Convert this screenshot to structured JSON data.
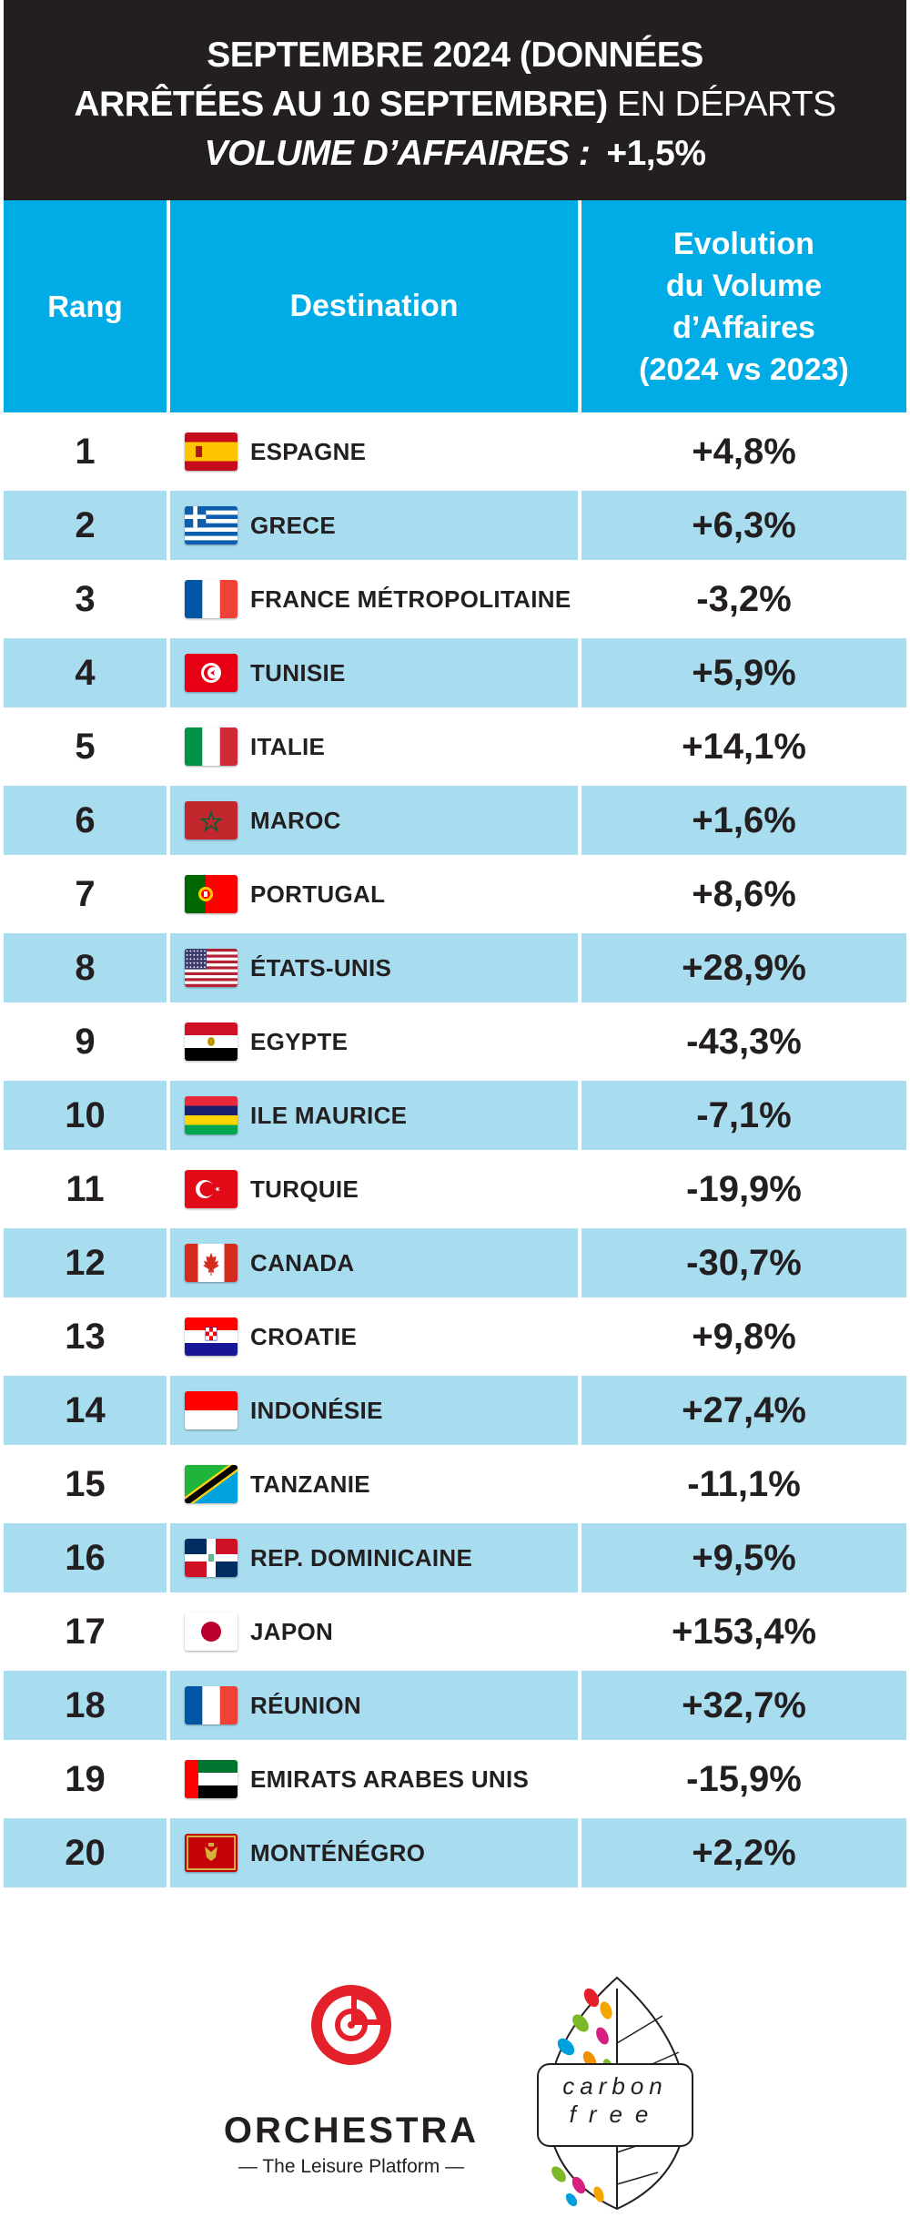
{
  "banner": {
    "line1": "SEPTEMBRE 2024 (DONNÉES",
    "line2_bold": "ARRÊTÉES AU 10 SEPTEMBRE)",
    "line2_regular": " EN DÉPARTS",
    "line3_label": "VOLUME D’AFFAIRES :",
    "line3_value": "+1,5%"
  },
  "table": {
    "headers": {
      "rank": "Rang",
      "destination": "Destination",
      "evolution_l1": "Evolution",
      "evolution_l2": "du Volume",
      "evolution_l3": "d’Affaires",
      "evolution_l4": "(2024 vs 2023)"
    },
    "rows": [
      {
        "rank": "1",
        "flag": "spain-flag",
        "destination": "ESPAGNE",
        "evolution": "+4,8%"
      },
      {
        "rank": "2",
        "flag": "greece-flag",
        "destination": "GRECE",
        "evolution": "+6,3%"
      },
      {
        "rank": "3",
        "flag": "france-flag",
        "destination": "FRANCE MÉTROPOLITAINE",
        "evolution": "-3,2%"
      },
      {
        "rank": "4",
        "flag": "tunisia-flag",
        "destination": "TUNISIE",
        "evolution": "+5,9%"
      },
      {
        "rank": "5",
        "flag": "italy-flag",
        "destination": "ITALIE",
        "evolution": "+14,1%"
      },
      {
        "rank": "6",
        "flag": "morocco-flag",
        "destination": "MAROC",
        "evolution": "+1,6%"
      },
      {
        "rank": "7",
        "flag": "portugal-flag",
        "destination": "PORTUGAL",
        "evolution": "+8,6%"
      },
      {
        "rank": "8",
        "flag": "usa-flag",
        "destination": "ÉTATS-UNIS",
        "evolution": "+28,9%"
      },
      {
        "rank": "9",
        "flag": "egypt-flag",
        "destination": "EGYPTE",
        "evolution": "-43,3%"
      },
      {
        "rank": "10",
        "flag": "mauritius-flag",
        "destination": "ILE MAURICE",
        "evolution": "-7,1%"
      },
      {
        "rank": "11",
        "flag": "turkey-flag",
        "destination": "TURQUIE",
        "evolution": "-19,9%"
      },
      {
        "rank": "12",
        "flag": "canada-flag",
        "destination": "CANADA",
        "evolution": "-30,7%"
      },
      {
        "rank": "13",
        "flag": "croatia-flag",
        "destination": "CROATIE",
        "evolution": "+9,8%"
      },
      {
        "rank": "14",
        "flag": "indonesia-flag",
        "destination": "INDONÉSIE",
        "evolution": "+27,4%"
      },
      {
        "rank": "15",
        "flag": "tanzania-flag",
        "destination": "TANZANIE",
        "evolution": "-11,1%"
      },
      {
        "rank": "16",
        "flag": "dominican-republic-flag",
        "destination": "REP. DOMINICAINE",
        "evolution": "+9,5%"
      },
      {
        "rank": "17",
        "flag": "japan-flag",
        "destination": "JAPON",
        "evolution": "+153,4%"
      },
      {
        "rank": "18",
        "flag": "reunion-flag",
        "destination": "RÉUNION",
        "evolution": "+32,7%"
      },
      {
        "rank": "19",
        "flag": "uae-flag",
        "destination": "EMIRATS ARABES UNIS",
        "evolution": "-15,9%"
      },
      {
        "rank": "20",
        "flag": "montenegro-flag",
        "destination": "MONTÉNÉGRO",
        "evolution": "+2,2%"
      }
    ]
  },
  "footer": {
    "brand": "ORCHESTRA",
    "tagline": "— The Leisure Platform —",
    "carbon_l1": "carbon",
    "carbon_l2": "free"
  },
  "colors": {
    "banner_bg": "#231f20",
    "header_bg": "#00ace6",
    "alt_row_bg": "#a8ddf0",
    "brand_red": "#e4202a"
  }
}
